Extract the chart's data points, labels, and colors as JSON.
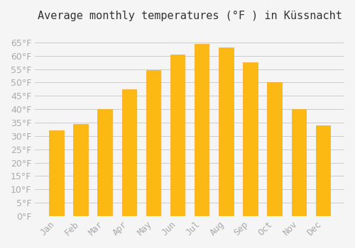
{
  "title": "Average monthly temperatures (°F ) in Küssnacht",
  "months": [
    "Jan",
    "Feb",
    "Mar",
    "Apr",
    "May",
    "Jun",
    "Jul",
    "Aug",
    "Sep",
    "Oct",
    "Nov",
    "Dec"
  ],
  "values": [
    32,
    34.5,
    40,
    47.5,
    54.5,
    60.5,
    64.5,
    63,
    57.5,
    50,
    40,
    34
  ],
  "bar_color": "#FDB913",
  "bar_edge_color": "#F5A623",
  "background_color": "#F5F5F5",
  "grid_color": "#CCCCCC",
  "text_color": "#AAAAAA",
  "ylim": [
    0,
    70
  ],
  "yticks": [
    0,
    5,
    10,
    15,
    20,
    25,
    30,
    35,
    40,
    45,
    50,
    55,
    60,
    65
  ],
  "title_fontsize": 11,
  "tick_fontsize": 9
}
